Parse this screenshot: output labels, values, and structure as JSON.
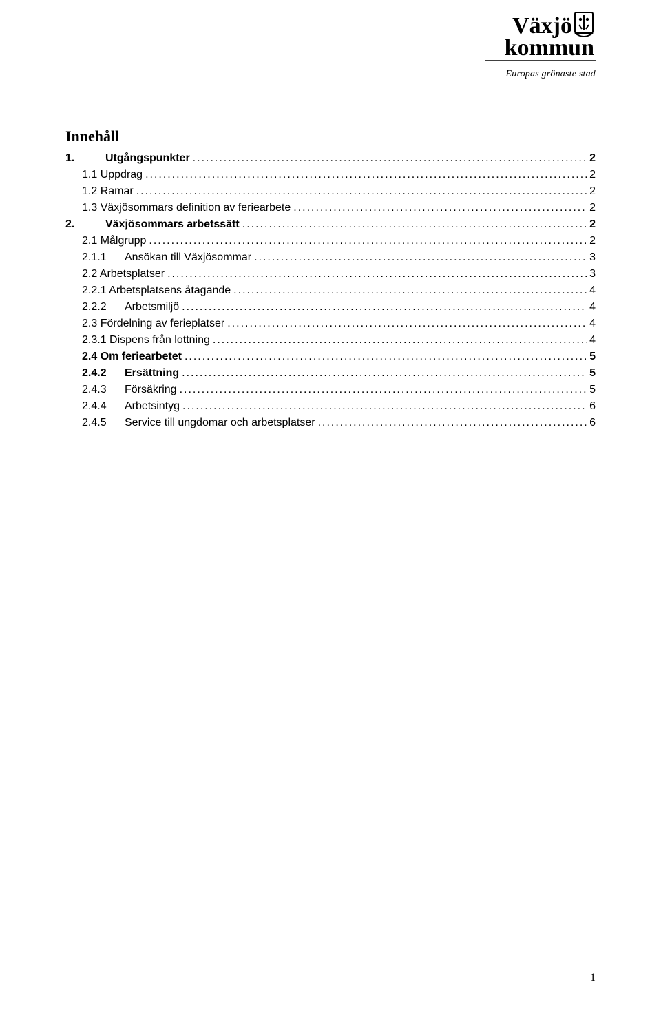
{
  "logo": {
    "line1": "Växjö",
    "line2": "kommun",
    "tagline": "Europas grönaste stad"
  },
  "heading": "Innehåll",
  "toc": {
    "entries": [
      {
        "label": "1.",
        "title": "Utgångspunkter",
        "page": "2",
        "bold": true,
        "indent": 0,
        "numStyle": "tab-num"
      },
      {
        "label": "1.1",
        "title": "Uppdrag",
        "page": "2",
        "bold": false,
        "indent": 1,
        "numStyle": ""
      },
      {
        "label": "1.2",
        "title": "Ramar",
        "page": "2",
        "bold": false,
        "indent": 1,
        "numStyle": ""
      },
      {
        "label": "1.3",
        "title": "Växjösommars definition av feriearbete",
        "page": "2",
        "bold": false,
        "indent": 1,
        "numStyle": ""
      },
      {
        "label": "2.",
        "title": "Växjösommars arbetssätt",
        "page": "2",
        "bold": true,
        "indent": 0,
        "numStyle": "tab-num"
      },
      {
        "label": "2.1",
        "title": "Målgrupp",
        "page": "2",
        "bold": false,
        "indent": 1,
        "numStyle": ""
      },
      {
        "label": "2.1.1",
        "title": "Ansökan till Växjösommar",
        "page": "3",
        "bold": false,
        "indent": 2,
        "numStyle": "tab-num-wide"
      },
      {
        "label": "2.2",
        "title": "Arbetsplatser",
        "page": "3",
        "bold": false,
        "indent": 1,
        "numStyle": ""
      },
      {
        "label": "2.2.1",
        "title": "Arbetsplatsens åtagande",
        "page": "4",
        "bold": false,
        "indent": 2,
        "numStyle": ""
      },
      {
        "label": "2.2.2",
        "title": "Arbetsmiljö",
        "page": "4",
        "bold": false,
        "indent": 2,
        "numStyle": "tab-num-wide"
      },
      {
        "label": "2.3",
        "title": "Fördelning av ferieplatser",
        "page": "4",
        "bold": false,
        "indent": 1,
        "numStyle": ""
      },
      {
        "label": "2.3.1",
        "title": "Dispens från lottning",
        "page": "4",
        "bold": false,
        "indent": 2,
        "numStyle": ""
      },
      {
        "label": "2.4",
        "title": "Om feriearbetet",
        "page": "5",
        "bold": true,
        "indent": 1,
        "numStyle": ""
      },
      {
        "label": "2.4.2",
        "title": "Ersättning",
        "page": "5",
        "bold": true,
        "indent": 2,
        "numStyle": "tab-num-wide"
      },
      {
        "label": "2.4.3",
        "title": "Försäkring",
        "page": "5",
        "bold": false,
        "indent": 2,
        "numStyle": "tab-num-wide"
      },
      {
        "label": "2.4.4",
        "title": "Arbetsintyg",
        "page": "6",
        "bold": false,
        "indent": 2,
        "numStyle": "tab-num-wide"
      },
      {
        "label": "2.4.5",
        "title": "Service till ungdomar och arbetsplatser",
        "page": "6",
        "bold": false,
        "indent": 2,
        "numStyle": "tab-num-wide"
      }
    ]
  },
  "pageNumber": "1",
  "colors": {
    "text": "#000000",
    "background": "#ffffff"
  }
}
